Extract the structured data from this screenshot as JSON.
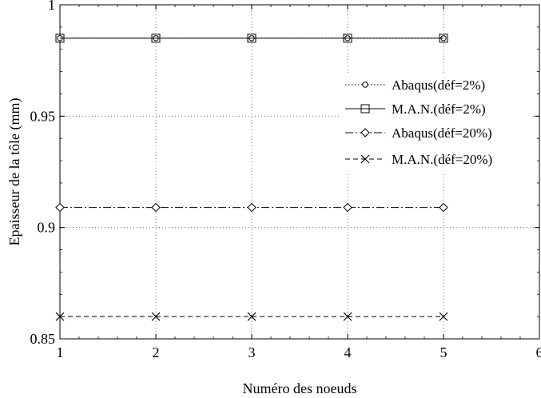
{
  "chart_data": {
    "type": "line",
    "xlabel": "Numéro des noeuds",
    "ylabel": "Epaisseur de la tôle (mm)",
    "xlim": [
      1,
      6
    ],
    "ylim": [
      0.85,
      1
    ],
    "xticks": [
      1,
      2,
      3,
      4,
      5,
      6
    ],
    "yticks": [
      0.85,
      0.9,
      0.95,
      1
    ],
    "ytick_labels": [
      "0.85",
      "0.9",
      "0.95",
      "1"
    ],
    "grid": true,
    "legend_position": "right",
    "x": [
      1,
      2,
      3,
      4,
      5
    ],
    "series": [
      {
        "name": "Abaqus(déf=2%)",
        "values": [
          0.985,
          0.985,
          0.985,
          0.985,
          0.985
        ],
        "marker": "circle",
        "linestyle": "dotted"
      },
      {
        "name": "M.A.N.(déf=2%)",
        "values": [
          0.985,
          0.985,
          0.985,
          0.985,
          0.985
        ],
        "marker": "square",
        "linestyle": "solid"
      },
      {
        "name": "Abaqus(déf=20%)",
        "values": [
          0.909,
          0.909,
          0.909,
          0.909,
          0.909
        ],
        "marker": "diamond",
        "linestyle": "dashdot"
      },
      {
        "name": "M.A.N.(déf=20%)",
        "values": [
          0.86,
          0.86,
          0.86,
          0.86,
          0.86
        ],
        "marker": "x",
        "linestyle": "dashed"
      }
    ]
  }
}
